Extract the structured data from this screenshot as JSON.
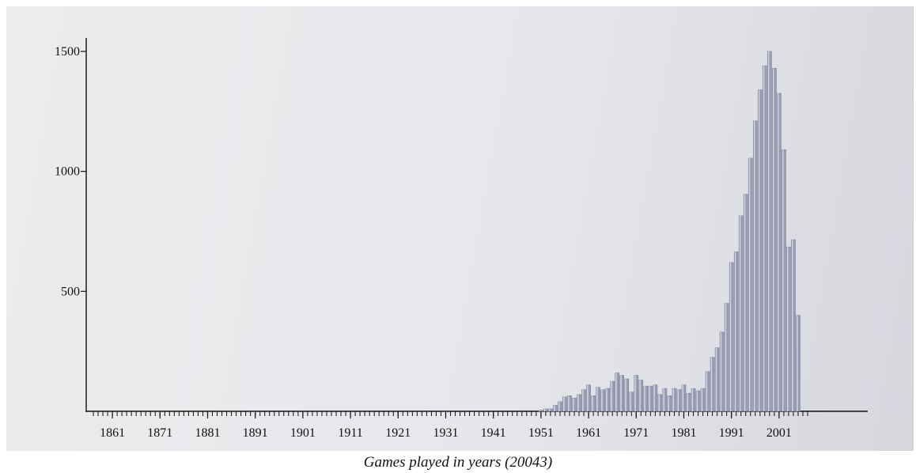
{
  "caption": "Games played in years (20043)",
  "chart_data": {
    "type": "bar",
    "title": "",
    "xlabel": "Games played in years (20043)",
    "ylabel": "",
    "ylim": [
      0,
      1500
    ],
    "y_ticks": [
      500,
      1000,
      1500
    ],
    "x_range": [
      1857,
      2007
    ],
    "x_tick_labels": [
      "1861",
      "1871",
      "1881",
      "1891",
      "1901",
      "1911",
      "1921",
      "1931",
      "1941",
      "1951",
      "1961",
      "1971",
      "1981",
      "1991",
      "2001"
    ],
    "grid": false,
    "bar_color": "#9a9cb4",
    "x": [
      1951,
      1952,
      1953,
      1954,
      1955,
      1956,
      1957,
      1958,
      1959,
      1960,
      1961,
      1962,
      1963,
      1964,
      1965,
      1966,
      1967,
      1968,
      1969,
      1970,
      1971,
      1972,
      1973,
      1974,
      1975,
      1976,
      1977,
      1978,
      1979,
      1980,
      1981,
      1982,
      1983,
      1984,
      1985,
      1986,
      1987,
      1988,
      1989,
      1990,
      1991,
      1992,
      1993,
      1994,
      1995,
      1996,
      1997,
      1998,
      1999,
      2000,
      2001,
      2002,
      2003,
      2004,
      2005,
      2006
    ],
    "values": [
      5,
      10,
      10,
      25,
      40,
      60,
      65,
      55,
      70,
      90,
      110,
      65,
      100,
      90,
      95,
      125,
      160,
      150,
      135,
      80,
      150,
      130,
      105,
      105,
      110,
      70,
      95,
      65,
      95,
      90,
      110,
      75,
      95,
      85,
      95,
      165,
      225,
      265,
      330,
      450,
      620,
      665,
      815,
      905,
      1055,
      1210,
      1340,
      1440,
      1500,
      1430,
      1325,
      1090,
      685,
      715,
      400,
      0
    ]
  }
}
